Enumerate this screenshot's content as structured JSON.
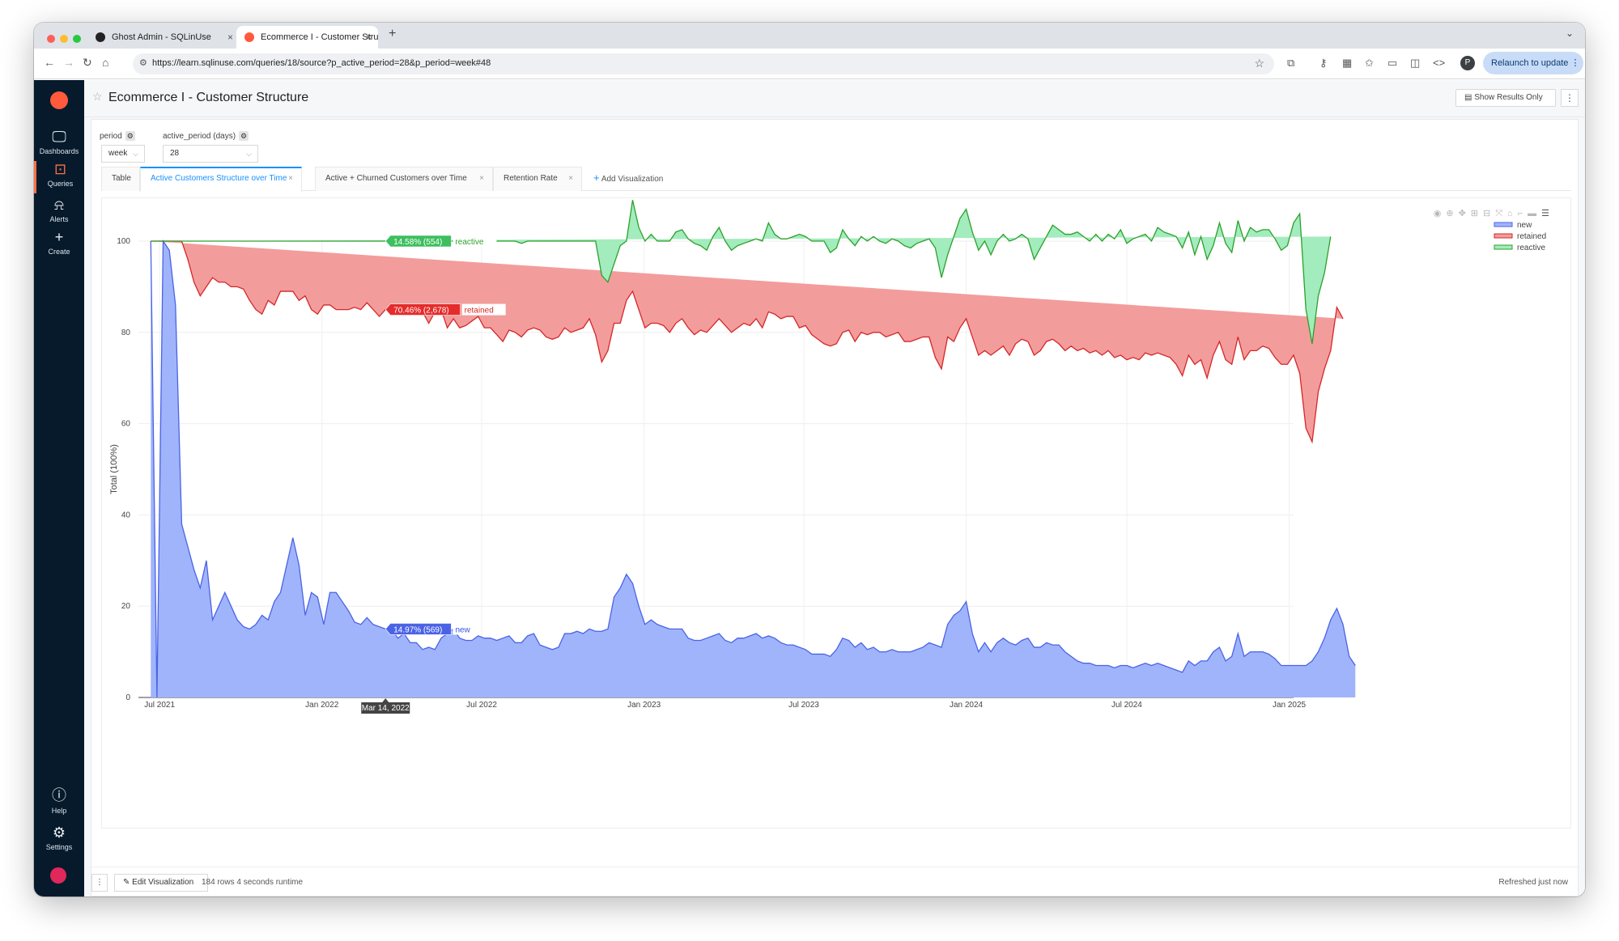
{
  "browser": {
    "tabs": [
      {
        "title": "Ghost Admin - SQLinUse"
      },
      {
        "title": "Ecommerce I - Customer Stru"
      }
    ],
    "url": "https://learn.sqlinuse.com/queries/18/source?p_active_period=28&p_period=week#48",
    "profile_initial": "P",
    "relaunch_label": "Relaunch to update"
  },
  "sidebar": {
    "items": [
      {
        "label": "Dashboards",
        "icon": "monitor-icon"
      },
      {
        "label": "Queries",
        "icon": "terminal-icon"
      },
      {
        "label": "Alerts",
        "icon": "bell-icon"
      },
      {
        "label": "Create",
        "icon": "plus-icon"
      },
      {
        "label": "Help",
        "icon": "help-icon"
      },
      {
        "label": "Settings",
        "icon": "gear-icon"
      }
    ]
  },
  "header": {
    "title": "Ecommerce I - Customer Structure",
    "show_results_label": "Show Results Only"
  },
  "params": {
    "period": {
      "label": "period",
      "value": "week"
    },
    "active_period": {
      "label": "active_period (days)",
      "value": "28"
    }
  },
  "viz_tabs": [
    {
      "label": "Table"
    },
    {
      "label": "Active Customers Structure over Time"
    },
    {
      "label": "Active + Churned Customers over Time"
    },
    {
      "label": "Retention Rate"
    }
  ],
  "add_viz_label": "Add Visualization",
  "footer": {
    "edit_label": "Edit Visualization",
    "rows_info": "184 rows 4 seconds runtime",
    "refreshed": "Refreshed just now"
  },
  "colors": {
    "new": "#a0b4fb",
    "retained": "#f39c9c",
    "reactive": "#a3ecbd",
    "new_line": "#4a63e6",
    "retained_line": "#d62728",
    "reactive_line": "#2ca02c"
  },
  "chart_data": {
    "type": "area",
    "ylabel": "Total (100%)",
    "ylim": [
      0,
      100
    ],
    "yticks": [
      0,
      20,
      40,
      60,
      80,
      100
    ],
    "xtick_labels": [
      "Jul 2021",
      "Jan 2022",
      "Jul 2022",
      "Jan 2023",
      "Jul 2023",
      "Jan 2024",
      "Jul 2024",
      "Jan 2025"
    ],
    "xrange": [
      "2021-06-07",
      "2025-01-06"
    ],
    "x_start": "2021-06-21",
    "x_step_days": 7,
    "series": [
      {
        "name": "new",
        "values": [
          100,
          0,
          100,
          98,
          86,
          38,
          33,
          28,
          24,
          30,
          17,
          20,
          23,
          20,
          17,
          15.5,
          15,
          16,
          18,
          17,
          21,
          23,
          29,
          35,
          29,
          18,
          23,
          22,
          16,
          23,
          23,
          21,
          19,
          16.5,
          16,
          17.5,
          16,
          15.5,
          15,
          15,
          13,
          14,
          12,
          12,
          10.5,
          11,
          10.5,
          13,
          14,
          15,
          13,
          12.5,
          12.5,
          13.5,
          13,
          13,
          12.5,
          13,
          13.5,
          12,
          12,
          13.5,
          14,
          11.5,
          11,
          10.5,
          11,
          14,
          14,
          14.5,
          14,
          15,
          14.5,
          14.5,
          15,
          22,
          24,
          27,
          25,
          20,
          16,
          17,
          16,
          15.5,
          15,
          15,
          15,
          13,
          12.5,
          12.5,
          13,
          13.5,
          14,
          12.5,
          12,
          13,
          13,
          13.5,
          14,
          13,
          13.5,
          13,
          12,
          11.5,
          11.5,
          11,
          10.5,
          9.5,
          9.5,
          9.5,
          9,
          10.5,
          13,
          12.5,
          11,
          12,
          10.5,
          11,
          10,
          10,
          10.5,
          10,
          10,
          10,
          10.5,
          11,
          12,
          11.5,
          11,
          16,
          18,
          19,
          21,
          14,
          10,
          12,
          10,
          12,
          13,
          12,
          11.5,
          12.5,
          13,
          11,
          11,
          12,
          11.5,
          11.5,
          10,
          9,
          8,
          7.5,
          7.5,
          7,
          7,
          7,
          6.5,
          7,
          7,
          6.5,
          7,
          7.5,
          7,
          7.5,
          7,
          6.5,
          6,
          5.5,
          8,
          7,
          8,
          8,
          10,
          11,
          8,
          9,
          14,
          9,
          10,
          10,
          10,
          9.5,
          8.5,
          7,
          7,
          7,
          7,
          7,
          8,
          10,
          13,
          17,
          19.5,
          16,
          9,
          7
        ]
      },
      {
        "name": "retained",
        "values": [
          0,
          100,
          0,
          2,
          14,
          62,
          63,
          63,
          64,
          60,
          75,
          71,
          68,
          70,
          73,
          74,
          72,
          69,
          66,
          70,
          65,
          66,
          60,
          54,
          58,
          70,
          62,
          62,
          70,
          63,
          62,
          64,
          66,
          69,
          69,
          69,
          69,
          68,
          70,
          71,
          71,
          72,
          72,
          72,
          74,
          71,
          74,
          72,
          67,
          68,
          68,
          69,
          70,
          70,
          68,
          68,
          67,
          65,
          67,
          68,
          67,
          67,
          67,
          69,
          68,
          68,
          68,
          67,
          66,
          66,
          67,
          68,
          65,
          59,
          61,
          60,
          58,
          60,
          64,
          65,
          65,
          65,
          66,
          66,
          65,
          67,
          68,
          68,
          67,
          68,
          67,
          68,
          69,
          69,
          68,
          68,
          69,
          68,
          69,
          68,
          71,
          71,
          71,
          72,
          72,
          70,
          71,
          70,
          69,
          68,
          68,
          67,
          67,
          68,
          67,
          68,
          69,
          69,
          70,
          69,
          69,
          70,
          68,
          68,
          68,
          68,
          67,
          63,
          61,
          63,
          60,
          62,
          62,
          65,
          65,
          64,
          65,
          64,
          64,
          63,
          66,
          66,
          65,
          64,
          65,
          66,
          67,
          66,
          66,
          68,
          68,
          69,
          68,
          69,
          68,
          69,
          68,
          68,
          67,
          68,
          67,
          68,
          68,
          68,
          68,
          68,
          67,
          65,
          67,
          66,
          66,
          62,
          65,
          67,
          66,
          64,
          65,
          65,
          66,
          66,
          67,
          67,
          66,
          66,
          66,
          68,
          64,
          52,
          48,
          57,
          59,
          59,
          66,
          67
        ]
      },
      {
        "name": "reactive",
        "values": [
          0,
          0,
          0,
          0,
          0,
          0,
          4,
          9,
          12,
          10,
          8,
          9,
          9,
          10,
          10,
          10.5,
          13,
          15,
          16,
          13,
          14,
          11,
          11,
          11,
          13,
          12,
          15,
          16,
          14,
          14,
          15,
          15,
          15,
          14.5,
          15,
          13.5,
          15,
          16.5,
          15,
          14,
          16,
          14,
          16,
          16,
          15.5,
          18,
          15.5,
          15,
          19,
          17,
          19,
          18.5,
          17.5,
          16.5,
          19,
          19,
          20.5,
          22,
          19.5,
          20,
          20.5,
          19.5,
          19,
          19.5,
          21,
          21.5,
          21,
          19,
          20,
          19.5,
          19,
          17,
          20.5,
          19,
          15,
          13,
          17,
          13,
          20,
          18,
          19,
          19.5,
          18,
          18.5,
          20,
          20,
          19.5,
          19.5,
          20,
          18.5,
          18,
          19.5,
          20,
          18.5,
          18,
          18,
          17.5,
          18.5,
          17.5,
          19,
          19.5,
          17.5,
          17.5,
          17,
          17.5,
          20.5,
          19.5,
          20.5,
          21.5,
          22.5,
          20.5,
          21,
          22.5,
          20,
          21,
          21,
          20.5,
          21,
          20,
          20.5,
          21,
          20,
          21,
          20.5,
          21,
          21,
          21.5,
          24,
          20,
          18,
          23,
          24,
          24,
          23,
          23,
          24,
          22,
          24,
          24.5,
          25,
          23,
          23,
          22.5,
          21,
          22.5,
          23,
          25,
          25,
          25.5,
          24.5,
          26,
          24.5,
          24.5,
          25.5,
          25,
          25.5,
          26,
          27.5,
          25.5,
          26,
          27,
          26,
          25,
          27.5,
          27,
          27,
          28,
          28,
          27,
          24,
          27,
          26,
          24,
          26,
          25.5,
          24.5,
          25.5,
          26,
          27,
          26,
          25.5,
          26,
          26,
          25,
          26,
          29,
          35,
          26,
          21.5,
          21,
          21,
          25
        ]
      }
    ],
    "hover_date": "Mar 14, 2022",
    "hover_labels": {
      "new": "14.97% (569)",
      "retained": "70.46% (2,678)",
      "reactive": "14.58% (554)"
    }
  }
}
